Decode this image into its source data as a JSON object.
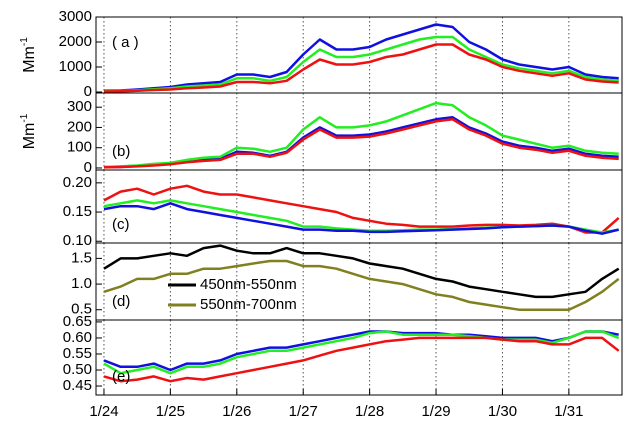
{
  "chart_data": [
    {
      "type": "line",
      "panel_label": "( a )",
      "ylabel": {
        "base": "Mm",
        "sup": "-1"
      },
      "x": [
        24,
        24.25,
        24.5,
        24.75,
        25,
        25.25,
        25.5,
        25.75,
        26,
        26.25,
        26.5,
        26.75,
        27,
        27.25,
        27.5,
        27.75,
        28,
        28.25,
        28.5,
        28.75,
        29,
        29.25,
        29.5,
        29.75,
        30,
        30.25,
        30.5,
        30.75,
        31,
        31.25,
        31.5,
        31.75
      ],
      "series": [
        {
          "color": "#1010e0",
          "values": [
            50,
            60,
            100,
            150,
            200,
            300,
            350,
            400,
            700,
            700,
            600,
            800,
            1500,
            2100,
            1700,
            1700,
            1800,
            2100,
            2300,
            2500,
            2700,
            2600,
            2000,
            1700,
            1300,
            1100,
            1000,
            900,
            1000,
            700,
            600,
            550
          ]
        },
        {
          "color": "#22ee22",
          "values": [
            30,
            40,
            70,
            110,
            150,
            220,
            260,
            300,
            550,
            550,
            450,
            600,
            1200,
            1700,
            1400,
            1400,
            1500,
            1700,
            1900,
            2100,
            2200,
            2200,
            1700,
            1400,
            1100,
            950,
            850,
            750,
            850,
            600,
            500,
            450
          ]
        },
        {
          "color": "#ee1111",
          "values": [
            20,
            30,
            50,
            80,
            100,
            150,
            180,
            220,
            400,
            400,
            350,
            450,
            900,
            1300,
            1100,
            1100,
            1200,
            1400,
            1500,
            1700,
            1900,
            1900,
            1500,
            1300,
            1000,
            850,
            750,
            650,
            750,
            500,
            420,
            380
          ]
        }
      ],
      "xlim": [
        23.88,
        31.8
      ],
      "ylim": [
        -40,
        3000
      ],
      "yticks": [
        0,
        1000,
        2000,
        3000
      ]
    },
    {
      "type": "line",
      "panel_label": "(b)",
      "ylabel": {
        "base": "Mm",
        "sup": "-1"
      },
      "x": [
        24,
        24.25,
        24.5,
        24.75,
        25,
        25.25,
        25.5,
        25.75,
        26,
        26.25,
        26.5,
        26.75,
        27,
        27.25,
        27.5,
        27.75,
        28,
        28.25,
        28.5,
        28.75,
        29,
        29.25,
        29.5,
        29.75,
        30,
        30.25,
        30.5,
        30.75,
        31,
        31.25,
        31.5,
        31.75
      ],
      "series": [
        {
          "color": "#1010e0",
          "values": [
            5,
            5,
            10,
            15,
            20,
            30,
            40,
            45,
            80,
            75,
            60,
            80,
            150,
            200,
            160,
            160,
            165,
            180,
            200,
            220,
            240,
            250,
            200,
            170,
            130,
            110,
            100,
            85,
            95,
            70,
            60,
            55
          ]
        },
        {
          "color": "#22ee22",
          "values": [
            5,
            8,
            12,
            20,
            25,
            40,
            50,
            55,
            100,
            95,
            80,
            100,
            190,
            250,
            200,
            200,
            210,
            230,
            260,
            290,
            320,
            310,
            250,
            210,
            160,
            140,
            120,
            100,
            110,
            85,
            75,
            70
          ]
        },
        {
          "color": "#ee1111",
          "values": [
            3,
            5,
            8,
            12,
            18,
            28,
            35,
            40,
            70,
            70,
            55,
            75,
            140,
            190,
            150,
            150,
            155,
            170,
            190,
            210,
            230,
            240,
            190,
            160,
            120,
            100,
            90,
            75,
            85,
            60,
            50,
            45
          ]
        }
      ],
      "xlim": [
        23.88,
        31.8
      ],
      "ylim": [
        -10,
        370
      ],
      "yticks": [
        0,
        100,
        200,
        300
      ]
    },
    {
      "type": "line",
      "panel_label": "(c)",
      "x": [
        24,
        24.25,
        24.5,
        24.75,
        25,
        25.25,
        25.5,
        25.75,
        26,
        26.25,
        26.5,
        26.75,
        27,
        27.25,
        27.5,
        27.75,
        28,
        28.25,
        28.5,
        28.75,
        29,
        29.25,
        29.5,
        29.75,
        30,
        30.25,
        30.5,
        30.75,
        31,
        31.25,
        31.5,
        31.75
      ],
      "series": [
        {
          "color": "#ee1111",
          "values": [
            0.17,
            0.185,
            0.19,
            0.18,
            0.19,
            0.195,
            0.185,
            0.18,
            0.18,
            0.175,
            0.17,
            0.165,
            0.16,
            0.155,
            0.15,
            0.14,
            0.135,
            0.13,
            0.128,
            0.125,
            0.125,
            0.125,
            0.127,
            0.128,
            0.128,
            0.127,
            0.128,
            0.13,
            0.125,
            0.115,
            0.115,
            0.14
          ]
        },
        {
          "color": "#22ee22",
          "values": [
            0.16,
            0.165,
            0.17,
            0.165,
            0.17,
            0.165,
            0.16,
            0.155,
            0.15,
            0.145,
            0.14,
            0.135,
            0.125,
            0.125,
            0.122,
            0.12,
            0.118,
            0.118,
            0.119,
            0.12,
            0.12,
            0.121,
            0.122,
            0.123,
            0.124,
            0.125,
            0.126,
            0.127,
            0.125,
            0.12,
            0.115,
            0.12
          ]
        },
        {
          "color": "#1010e0",
          "values": [
            0.155,
            0.16,
            0.16,
            0.155,
            0.165,
            0.155,
            0.15,
            0.145,
            0.14,
            0.135,
            0.13,
            0.125,
            0.12,
            0.12,
            0.118,
            0.118,
            0.116,
            0.116,
            0.117,
            0.118,
            0.119,
            0.12,
            0.121,
            0.122,
            0.124,
            0.125,
            0.126,
            0.127,
            0.125,
            0.118,
            0.113,
            0.12
          ]
        }
      ],
      "xlim": [
        23.88,
        31.8
      ],
      "ylim": [
        0.097,
        0.222
      ],
      "yticks": [
        {
          "value": 0.1,
          "label": "0.10"
        },
        0.15,
        {
          "value": 0.2,
          "label": "0.20"
        }
      ]
    },
    {
      "type": "line",
      "panel_label": "(d)",
      "x": [
        24,
        24.25,
        24.5,
        24.75,
        25,
        25.25,
        25.5,
        25.75,
        26,
        26.25,
        26.5,
        26.75,
        27,
        27.25,
        27.5,
        27.75,
        28,
        28.25,
        28.5,
        28.75,
        29,
        29.25,
        29.5,
        29.75,
        30,
        30.25,
        30.5,
        30.75,
        31,
        31.25,
        31.5,
        31.75
      ],
      "series": [
        {
          "name": "450nm-550nm",
          "color": "#000000",
          "values": [
            1.3,
            1.5,
            1.5,
            1.55,
            1.6,
            1.55,
            1.7,
            1.75,
            1.65,
            1.6,
            1.6,
            1.7,
            1.6,
            1.6,
            1.55,
            1.5,
            1.4,
            1.35,
            1.3,
            1.2,
            1.1,
            1.05,
            0.95,
            0.9,
            0.85,
            0.8,
            0.75,
            0.75,
            0.8,
            0.85,
            1.1,
            1.3
          ]
        },
        {
          "name": "550nm-700nm",
          "color": "#808020",
          "values": [
            0.85,
            0.95,
            1.1,
            1.1,
            1.2,
            1.2,
            1.3,
            1.3,
            1.35,
            1.4,
            1.45,
            1.45,
            1.35,
            1.35,
            1.3,
            1.2,
            1.1,
            1.05,
            1.0,
            0.9,
            0.8,
            0.75,
            0.65,
            0.6,
            0.55,
            0.5,
            0.5,
            0.5,
            0.5,
            0.65,
            0.85,
            1.1
          ]
        }
      ],
      "xlim": [
        23.88,
        31.8
      ],
      "ylim": [
        0.3,
        1.8
      ],
      "yticks": [
        0.5,
        {
          "value": 1,
          "label": "1.0"
        },
        1.5
      ]
    },
    {
      "type": "line",
      "panel_label": "(e)",
      "x": [
        24,
        24.25,
        24.5,
        24.75,
        25,
        25.25,
        25.5,
        25.75,
        26,
        26.25,
        26.5,
        26.75,
        27,
        27.25,
        27.5,
        27.75,
        28,
        28.25,
        28.5,
        28.75,
        29,
        29.25,
        29.5,
        29.75,
        30,
        30.25,
        30.5,
        30.75,
        31,
        31.25,
        31.5,
        31.75
      ],
      "series": [
        {
          "color": "#1010e0",
          "values": [
            0.53,
            0.51,
            0.51,
            0.52,
            0.5,
            0.52,
            0.52,
            0.53,
            0.55,
            0.56,
            0.57,
            0.57,
            0.58,
            0.59,
            0.6,
            0.61,
            0.62,
            0.62,
            0.615,
            0.615,
            0.615,
            0.61,
            0.61,
            0.605,
            0.6,
            0.6,
            0.6,
            0.59,
            0.6,
            0.62,
            0.62,
            0.61
          ]
        },
        {
          "color": "#22ee22",
          "values": [
            0.52,
            0.49,
            0.5,
            0.51,
            0.49,
            0.51,
            0.51,
            0.52,
            0.54,
            0.55,
            0.56,
            0.56,
            0.57,
            0.58,
            0.59,
            0.6,
            0.615,
            0.62,
            0.61,
            0.61,
            0.61,
            0.61,
            0.605,
            0.6,
            0.595,
            0.595,
            0.595,
            0.585,
            0.6,
            0.62,
            0.62,
            0.6
          ]
        },
        {
          "color": "#ee1111",
          "values": [
            0.48,
            0.465,
            0.47,
            0.48,
            0.465,
            0.475,
            0.47,
            0.48,
            0.49,
            0.5,
            0.51,
            0.52,
            0.53,
            0.545,
            0.56,
            0.57,
            0.58,
            0.59,
            0.595,
            0.6,
            0.6,
            0.6,
            0.6,
            0.6,
            0.595,
            0.59,
            0.59,
            0.58,
            0.58,
            0.6,
            0.6,
            0.56
          ]
        }
      ],
      "xlim": [
        23.88,
        31.8
      ],
      "ylim": [
        0.422,
        0.656
      ],
      "yticks": [
        0.45,
        {
          "value": 0.5,
          "label": "0.50"
        },
        0.55,
        {
          "value": 0.6,
          "label": "0.60"
        },
        0.65
      ],
      "xticks": [
        {
          "value": 24,
          "label": "1/24"
        },
        {
          "value": 25,
          "label": "1/25"
        },
        {
          "value": 26,
          "label": "1/26"
        },
        {
          "value": 27,
          "label": "1/27"
        },
        {
          "value": 28,
          "label": "1/28"
        },
        {
          "value": 29,
          "label": "1/29"
        },
        {
          "value": 30,
          "label": "1/30"
        },
        {
          "value": 31,
          "label": "1/31"
        }
      ]
    }
  ]
}
